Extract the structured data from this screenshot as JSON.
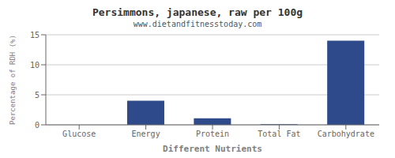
{
  "chart_data": {
    "type": "bar",
    "title": "Persimmons, japanese, raw per 100g",
    "subtitle": "www.dietandfitnesstoday.com",
    "xlabel": "Different Nutrients",
    "ylabel": "Percentage of RDH (%)",
    "categories": [
      "Glucose",
      "Energy",
      "Protein",
      "Total Fat",
      "Carbohydrate"
    ],
    "values": [
      0,
      4.0,
      1.1,
      0.1,
      14.0
    ],
    "color": "#2e4a8a",
    "ylim": [
      0,
      15
    ],
    "yticks": [
      0,
      5,
      10,
      15
    ],
    "grid": true
  }
}
